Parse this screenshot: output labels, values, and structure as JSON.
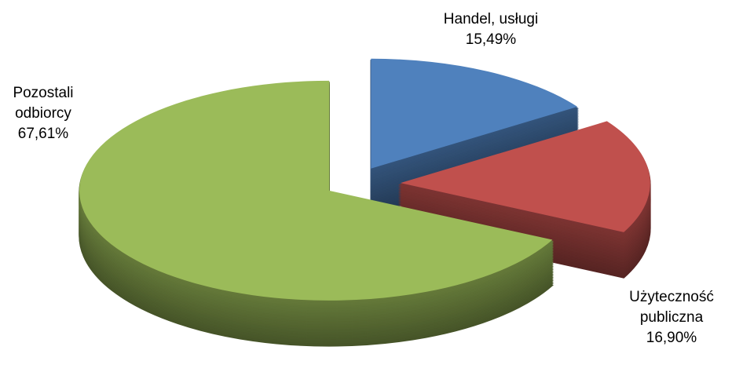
{
  "chart_data": {
    "type": "pie",
    "categories": [
      "Handel, usługi",
      "Użyteczność publiczna",
      "Pozostali odbiorcy"
    ],
    "values": [
      15.49,
      16.9,
      67.61
    ],
    "value_labels": [
      "15,49%",
      "16,90%",
      "67,61%"
    ],
    "colors": [
      "#4f81bd",
      "#c0504d",
      "#9bbb59"
    ],
    "exploded": true,
    "three_d": true
  }
}
